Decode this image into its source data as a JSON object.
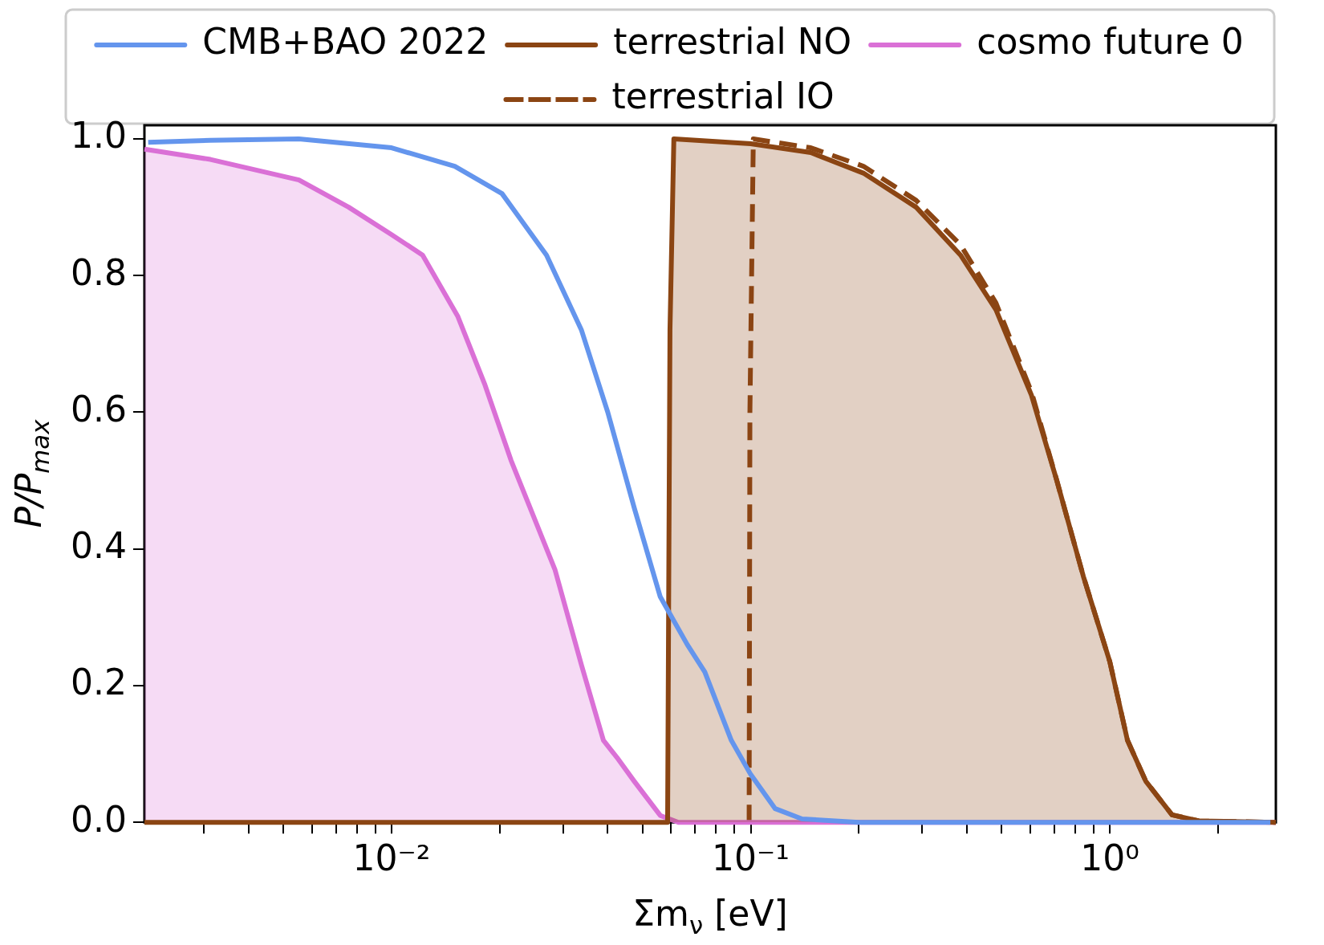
{
  "chart_data": {
    "type": "line",
    "xlabel": "Σm$_{ν}$ [eV]",
    "ylabel": "P/P$_{max}$",
    "log": "x",
    "xlim": [
      0.00205,
      2.9
    ],
    "xticks": [
      {
        "value": 0.003,
        "label": null
      },
      {
        "value": 0.004,
        "label": null
      },
      {
        "value": 0.005,
        "label": null
      },
      {
        "value": 0.006,
        "label": null
      },
      {
        "value": 0.007,
        "label": null
      },
      {
        "value": 0.008,
        "label": null
      },
      {
        "value": 0.009,
        "label": null
      },
      {
        "value": 0.01,
        "label": "10⁻²"
      },
      {
        "value": 0.02,
        "label": null
      },
      {
        "value": 0.03,
        "label": null
      },
      {
        "value": 0.04,
        "label": null
      },
      {
        "value": 0.05,
        "label": null
      },
      {
        "value": 0.06,
        "label": null
      },
      {
        "value": 0.07,
        "label": null
      },
      {
        "value": 0.08,
        "label": null
      },
      {
        "value": 0.09,
        "label": null
      },
      {
        "value": 0.1,
        "label": "10⁻¹"
      },
      {
        "value": 0.2,
        "label": null
      },
      {
        "value": 0.3,
        "label": null
      },
      {
        "value": 0.4,
        "label": null
      },
      {
        "value": 0.5,
        "label": null
      },
      {
        "value": 0.6,
        "label": null
      },
      {
        "value": 0.7,
        "label": null
      },
      {
        "value": 0.8,
        "label": null
      },
      {
        "value": 0.9,
        "label": null
      },
      {
        "value": 1,
        "label": "10⁰"
      },
      {
        "value": 2,
        "label": null
      }
    ],
    "ylim": [
      0,
      1.02
    ],
    "yticks": [
      {
        "value": 0,
        "label": "0.0"
      },
      {
        "value": 0.2,
        "label": "0.2"
      },
      {
        "value": 0.4,
        "label": "0.4"
      },
      {
        "value": 0.6,
        "label": "0.6"
      },
      {
        "value": 0.8,
        "label": "0.8"
      },
      {
        "value": 1,
        "label": "1.0"
      }
    ],
    "grid": false,
    "legend": "top",
    "marker": "none",
    "series": [
      {
        "name": "CMB+BAO 2022",
        "color": "#6495ed",
        "x": [
          0.0021,
          0.00313,
          0.00552,
          0.01,
          0.015,
          0.0203,
          0.027,
          0.0338,
          0.04,
          0.0474,
          0.056,
          0.0666,
          0.0745,
          0.0883,
          0.1,
          0.117,
          0.139,
          0.2,
          2.8
        ],
        "values": [
          0.995,
          0.998,
          1.0,
          0.987,
          0.96,
          0.92,
          0.83,
          0.72,
          0.6,
          0.46,
          0.33,
          0.26,
          0.22,
          0.12,
          0.07,
          0.02,
          0.005,
          0,
          0
        ]
      },
      {
        "name": "terrestrial NO",
        "type": "area",
        "color": "#8b4513",
        "x": [
          0.00205,
          0.0587,
          0.0596,
          0.0611,
          0.1,
          0.147,
          0.206,
          0.289,
          0.384,
          0.482,
          0.605,
          0.712,
          0.844,
          1.0,
          1.12,
          1.26,
          1.49,
          1.77,
          2.9
        ],
        "values": [
          0,
          0,
          0.72,
          1.0,
          0.993,
          0.98,
          0.95,
          0.9,
          0.83,
          0.75,
          0.625,
          0.5,
          0.36,
          0.235,
          0.12,
          0.06,
          0.011,
          0.002,
          0
        ]
      },
      {
        "name": "cosmo future 0",
        "type": "area",
        "color": "#da70d6",
        "x": [
          0.00205,
          0.00313,
          0.00552,
          0.0076,
          0.01,
          0.0122,
          0.0153,
          0.0182,
          0.0215,
          0.0285,
          0.0338,
          0.0389,
          0.0424,
          0.0474,
          0.056,
          0.0629,
          0.1,
          1,
          2.9
        ],
        "values": [
          0.985,
          0.97,
          0.94,
          0.9,
          0.86,
          0.83,
          0.74,
          0.64,
          0.53,
          0.37,
          0.23,
          0.12,
          0.095,
          0.06,
          0.01,
          0,
          0,
          0,
          0
        ]
      },
      {
        "name": "terrestrial IO",
        "line_style": "dashed",
        "color": "#8b4513",
        "x": [
          0.099,
          0.0995,
          0.1017,
          0.147,
          0.206,
          0.289,
          0.384,
          0.482,
          0.605,
          0.712,
          0.844,
          1.0,
          1.12,
          1.26,
          1.49,
          1.77,
          2.9
        ],
        "values": [
          0,
          0.6,
          1.0,
          0.987,
          0.96,
          0.91,
          0.845,
          0.76,
          0.63,
          0.5,
          0.36,
          0.235,
          0.12,
          0.06,
          0.011,
          0.002,
          0
        ]
      }
    ]
  }
}
